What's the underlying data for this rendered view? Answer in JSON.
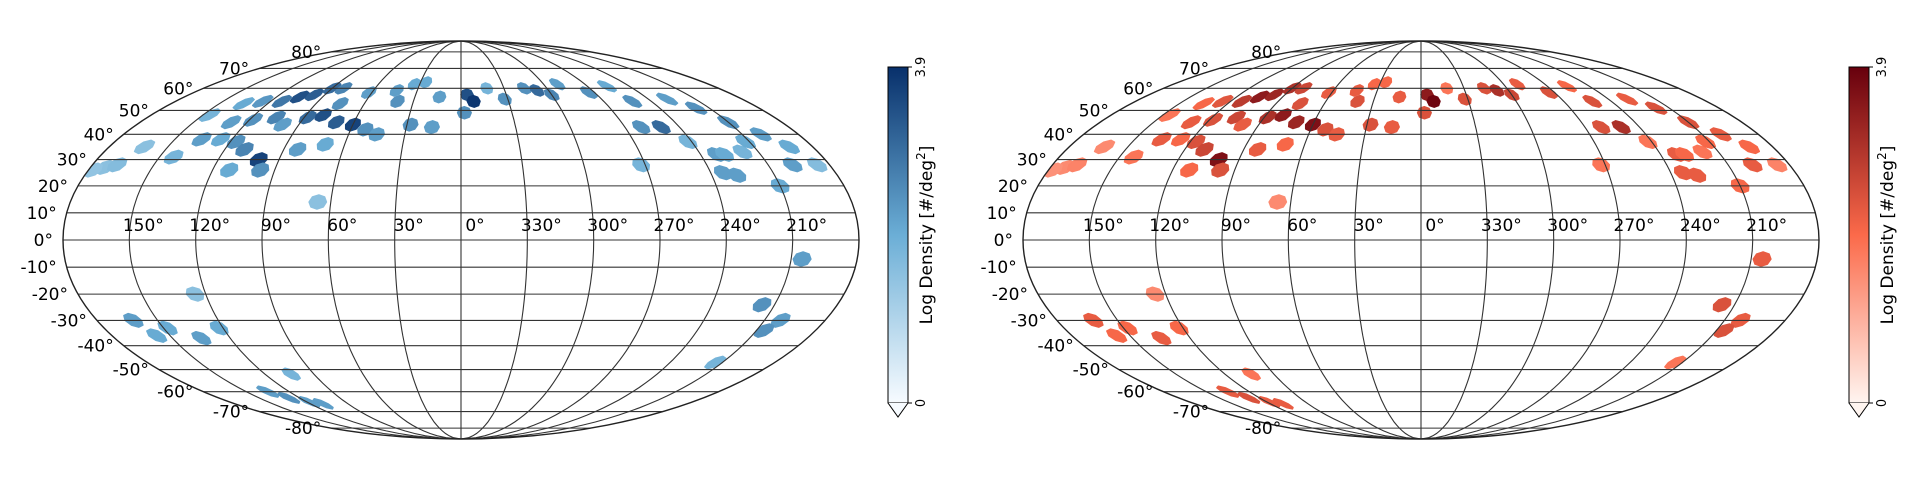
{
  "chart_data": [
    {
      "type": "heatmap",
      "projection": "mollweide",
      "colormap": "Blues",
      "colors": {
        "low": "#f7fbff",
        "mid": "#6baed6",
        "high": "#08306b"
      },
      "lon_ticks": [
        "150°",
        "120°",
        "90°",
        "60°",
        "30°",
        "0°",
        "330°",
        "300°",
        "270°",
        "240°",
        "210°"
      ],
      "lon_tick_values": [
        150,
        120,
        90,
        60,
        30,
        0,
        -30,
        -60,
        -90,
        -120,
        -150
      ],
      "lat_ticks": [
        "80°",
        "70°",
        "60°",
        "50°",
        "40°",
        "30°",
        "20°",
        "10°",
        "0°",
        "-10°",
        "-20°",
        "-30°",
        "-40°",
        "-50°",
        "-60°",
        "-70°",
        "-80°"
      ],
      "lat_tick_values": [
        80,
        70,
        60,
        50,
        40,
        30,
        20,
        10,
        0,
        -10,
        -20,
        -30,
        -40,
        -50,
        -60,
        -70,
        -80
      ],
      "colorbar": {
        "label": "Log Density [#/deg",
        "label_sup": "2",
        "label_end": "]",
        "min": 0,
        "max": 3.9,
        "min_label": "0",
        "max_label": "3.9",
        "extend": "min"
      },
      "patches": [
        {
          "lon": 173,
          "lat": 27,
          "v": 1.5
        },
        {
          "lon": 168,
          "lat": 28,
          "v": 1.6
        },
        {
          "lon": 178,
          "lat": 26,
          "v": 1.4
        },
        {
          "lon": 162,
          "lat": 35,
          "v": 1.5
        },
        {
          "lon": 146,
          "lat": 48,
          "v": 1.8
        },
        {
          "lon": 135,
          "lat": 53,
          "v": 2.0
        },
        {
          "lon": 125,
          "lat": 54,
          "v": 2.3
        },
        {
          "lon": 113,
          "lat": 54,
          "v": 2.8
        },
        {
          "lon": 105,
          "lat": 56,
          "v": 3.4
        },
        {
          "lon": 97,
          "lat": 57,
          "v": 3.2
        },
        {
          "lon": 90,
          "lat": 60,
          "v": 3.0
        },
        {
          "lon": 82,
          "lat": 60,
          "v": 2.6
        },
        {
          "lon": 75,
          "lat": 53,
          "v": 2.4
        },
        {
          "lon": 62,
          "lat": 58,
          "v": 2.2
        },
        {
          "lon": 44,
          "lat": 59,
          "v": 2.2
        },
        {
          "lon": 26,
          "lat": 63,
          "v": 2.0
        },
        {
          "lon": 34,
          "lat": 62,
          "v": 2.0
        },
        {
          "lon": 40,
          "lat": 54,
          "v": 2.4
        },
        {
          "lon": 14,
          "lat": 56,
          "v": 2.2
        },
        {
          "lon": 129,
          "lat": 45,
          "v": 2.2
        },
        {
          "lon": 118,
          "lat": 46,
          "v": 2.4
        },
        {
          "lon": 106,
          "lat": 47,
          "v": 2.6
        },
        {
          "lon": 99,
          "lat": 44,
          "v": 2.2
        },
        {
          "lon": 88,
          "lat": 47,
          "v": 3.0
        },
        {
          "lon": 80,
          "lat": 48,
          "v": 3.4
        },
        {
          "lon": 70,
          "lat": 45,
          "v": 3.2
        },
        {
          "lon": 60,
          "lat": 44,
          "v": 3.6
        },
        {
          "lon": 52,
          "lat": 42,
          "v": 2.4
        },
        {
          "lon": 45,
          "lat": 40,
          "v": 2.2
        },
        {
          "lon": 28,
          "lat": 44,
          "v": 2.4
        },
        {
          "lon": 16,
          "lat": 43,
          "v": 2.2
        },
        {
          "lon": 136,
          "lat": 38,
          "v": 2.2
        },
        {
          "lon": 126,
          "lat": 38,
          "v": 2.0
        },
        {
          "lon": 117,
          "lat": 37,
          "v": 2.4
        },
        {
          "lon": 110,
          "lat": 34,
          "v": 2.6
        },
        {
          "lon": 100,
          "lat": 30,
          "v": 3.6
        },
        {
          "lon": 97,
          "lat": 26,
          "v": 2.4
        },
        {
          "lon": 112,
          "lat": 26,
          "v": 2.0
        },
        {
          "lon": 143,
          "lat": 31,
          "v": 1.8
        },
        {
          "lon": 83,
          "lat": 34,
          "v": 2.2
        },
        {
          "lon": 70,
          "lat": 36,
          "v": 2.0
        },
        {
          "lon": 66,
          "lat": 14,
          "v": 1.5
        },
        {
          "lon": -4,
          "lat": 57,
          "v": 3.4
        },
        {
          "lon": -8,
          "lat": 54,
          "v": 3.8
        },
        {
          "lon": -18,
          "lat": 60,
          "v": 1.8
        },
        {
          "lon": -2,
          "lat": 49,
          "v": 2.4
        },
        {
          "lon": -28,
          "lat": 55,
          "v": 2.4
        },
        {
          "lon": -44,
          "lat": 60,
          "v": 2.4
        },
        {
          "lon": -52,
          "lat": 59,
          "v": 3.0
        },
        {
          "lon": -60,
          "lat": 57,
          "v": 2.6
        },
        {
          "lon": -70,
          "lat": 62,
          "v": 2.2
        },
        {
          "lon": -86,
          "lat": 58,
          "v": 2.4
        },
        {
          "lon": -104,
          "lat": 61,
          "v": 2.0
        },
        {
          "lon": -108,
          "lat": 54,
          "v": 2.4
        },
        {
          "lon": -132,
          "lat": 55,
          "v": 2.2
        },
        {
          "lon": -142,
          "lat": 51,
          "v": 2.4
        },
        {
          "lon": -150,
          "lat": 45,
          "v": 2.4
        },
        {
          "lon": -160,
          "lat": 40,
          "v": 2.2
        },
        {
          "lon": -168,
          "lat": 35,
          "v": 2.0
        },
        {
          "lon": -174,
          "lat": 28,
          "v": 1.6
        },
        {
          "lon": -110,
          "lat": 43,
          "v": 3.0
        },
        {
          "lon": -99,
          "lat": 43,
          "v": 2.4
        },
        {
          "lon": -118,
          "lat": 37,
          "v": 1.8
        },
        {
          "lon": -128,
          "lat": 32,
          "v": 2.2
        },
        {
          "lon": -132,
          "lat": 32,
          "v": 2.0
        },
        {
          "lon": -142,
          "lat": 33,
          "v": 1.8
        },
        {
          "lon": -148,
          "lat": 37,
          "v": 2.0
        },
        {
          "lon": -126,
          "lat": 25,
          "v": 2.2
        },
        {
          "lon": -132,
          "lat": 24,
          "v": 2.2
        },
        {
          "lon": -150,
          "lat": 20,
          "v": 2.0
        },
        {
          "lon": -88,
          "lat": 28,
          "v": 1.8
        },
        {
          "lon": -162,
          "lat": 28,
          "v": 2.2
        },
        {
          "lon": -155,
          "lat": -7,
          "v": 2.2
        },
        {
          "lon": -144,
          "lat": -24,
          "v": 2.4
        },
        {
          "lon": -158,
          "lat": -30,
          "v": 2.2
        },
        {
          "lon": -154,
          "lat": -34,
          "v": 2.4
        },
        {
          "lon": -146,
          "lat": -47,
          "v": 1.8
        },
        {
          "lon": 162,
          "lat": -30,
          "v": 2.2
        },
        {
          "lon": 157,
          "lat": -36,
          "v": 2.0
        },
        {
          "lon": 148,
          "lat": -33,
          "v": 2.0
        },
        {
          "lon": 135,
          "lat": -37,
          "v": 2.2
        },
        {
          "lon": 122,
          "lat": -33,
          "v": 2.0
        },
        {
          "lon": 125,
          "lat": -20,
          "v": 1.5
        },
        {
          "lon": 104,
          "lat": -52,
          "v": 1.8
        },
        {
          "lon": 135,
          "lat": -60,
          "v": 2.2
        },
        {
          "lon": 128,
          "lat": -63,
          "v": 2.4
        },
        {
          "lon": 118,
          "lat": -65,
          "v": 2.2
        },
        {
          "lon": 110,
          "lat": -66,
          "v": 2.2
        }
      ]
    },
    {
      "type": "heatmap",
      "projection": "mollweide",
      "colormap": "Reds",
      "colors": {
        "low": "#fff5f0",
        "mid": "#fb6a4a",
        "high": "#67000d"
      },
      "lon_ticks": [
        "150°",
        "120°",
        "90°",
        "60°",
        "30°",
        "0°",
        "330°",
        "300°",
        "270°",
        "240°",
        "210°"
      ],
      "lon_tick_values": [
        150,
        120,
        90,
        60,
        30,
        0,
        -30,
        -60,
        -90,
        -120,
        -150
      ],
      "lat_ticks": [
        "80°",
        "70°",
        "60°",
        "50°",
        "40°",
        "30°",
        "20°",
        "10°",
        "0°",
        "-10°",
        "-20°",
        "-30°",
        "-40°",
        "-50°",
        "-60°",
        "-70°",
        "-80°"
      ],
      "lat_tick_values": [
        80,
        70,
        60,
        50,
        40,
        30,
        20,
        10,
        0,
        -10,
        -20,
        -30,
        -40,
        -50,
        -60,
        -70,
        -80
      ],
      "colorbar": {
        "label": "Log Density [#/deg",
        "label_sup": "2",
        "label_end": "]",
        "min": 0,
        "max": 3.9,
        "min_label": "0",
        "max_label": "3.9",
        "extend": "min"
      },
      "patches": [
        {
          "lon": 173,
          "lat": 27,
          "v": 1.5
        },
        {
          "lon": 168,
          "lat": 28,
          "v": 1.6
        },
        {
          "lon": 178,
          "lat": 26,
          "v": 1.4
        },
        {
          "lon": 162,
          "lat": 35,
          "v": 1.5
        },
        {
          "lon": 146,
          "lat": 48,
          "v": 1.8
        },
        {
          "lon": 135,
          "lat": 53,
          "v": 2.0
        },
        {
          "lon": 125,
          "lat": 54,
          "v": 2.3
        },
        {
          "lon": 113,
          "lat": 54,
          "v": 2.8
        },
        {
          "lon": 105,
          "lat": 56,
          "v": 3.4
        },
        {
          "lon": 97,
          "lat": 57,
          "v": 3.2
        },
        {
          "lon": 90,
          "lat": 60,
          "v": 3.0
        },
        {
          "lon": 82,
          "lat": 60,
          "v": 2.6
        },
        {
          "lon": 75,
          "lat": 53,
          "v": 2.4
        },
        {
          "lon": 62,
          "lat": 58,
          "v": 2.2
        },
        {
          "lon": 44,
          "lat": 59,
          "v": 2.2
        },
        {
          "lon": 26,
          "lat": 63,
          "v": 2.0
        },
        {
          "lon": 34,
          "lat": 62,
          "v": 2.0
        },
        {
          "lon": 40,
          "lat": 54,
          "v": 2.4
        },
        {
          "lon": 14,
          "lat": 56,
          "v": 2.2
        },
        {
          "lon": 129,
          "lat": 45,
          "v": 2.2
        },
        {
          "lon": 118,
          "lat": 46,
          "v": 2.4
        },
        {
          "lon": 106,
          "lat": 47,
          "v": 2.6
        },
        {
          "lon": 99,
          "lat": 44,
          "v": 2.2
        },
        {
          "lon": 88,
          "lat": 47,
          "v": 3.0
        },
        {
          "lon": 80,
          "lat": 48,
          "v": 3.4
        },
        {
          "lon": 70,
          "lat": 45,
          "v": 3.2
        },
        {
          "lon": 60,
          "lat": 44,
          "v": 3.6
        },
        {
          "lon": 52,
          "lat": 42,
          "v": 2.4
        },
        {
          "lon": 45,
          "lat": 40,
          "v": 2.2
        },
        {
          "lon": 28,
          "lat": 44,
          "v": 2.4
        },
        {
          "lon": 16,
          "lat": 43,
          "v": 2.2
        },
        {
          "lon": 136,
          "lat": 38,
          "v": 2.2
        },
        {
          "lon": 126,
          "lat": 38,
          "v": 2.0
        },
        {
          "lon": 117,
          "lat": 37,
          "v": 2.4
        },
        {
          "lon": 110,
          "lat": 34,
          "v": 2.6
        },
        {
          "lon": 100,
          "lat": 30,
          "v": 3.6
        },
        {
          "lon": 97,
          "lat": 26,
          "v": 2.4
        },
        {
          "lon": 112,
          "lat": 26,
          "v": 2.0
        },
        {
          "lon": 143,
          "lat": 31,
          "v": 1.8
        },
        {
          "lon": 83,
          "lat": 34,
          "v": 2.2
        },
        {
          "lon": 70,
          "lat": 36,
          "v": 2.0
        },
        {
          "lon": 66,
          "lat": 14,
          "v": 1.5
        },
        {
          "lon": -4,
          "lat": 57,
          "v": 3.4
        },
        {
          "lon": -8,
          "lat": 54,
          "v": 3.8
        },
        {
          "lon": -18,
          "lat": 60,
          "v": 1.8
        },
        {
          "lon": -2,
          "lat": 49,
          "v": 2.4
        },
        {
          "lon": -28,
          "lat": 55,
          "v": 2.4
        },
        {
          "lon": -44,
          "lat": 60,
          "v": 2.4
        },
        {
          "lon": -52,
          "lat": 59,
          "v": 3.0
        },
        {
          "lon": -60,
          "lat": 57,
          "v": 2.6
        },
        {
          "lon": -70,
          "lat": 62,
          "v": 2.2
        },
        {
          "lon": -86,
          "lat": 58,
          "v": 2.4
        },
        {
          "lon": -104,
          "lat": 61,
          "v": 2.0
        },
        {
          "lon": -108,
          "lat": 54,
          "v": 2.4
        },
        {
          "lon": -132,
          "lat": 55,
          "v": 2.2
        },
        {
          "lon": -142,
          "lat": 51,
          "v": 2.4
        },
        {
          "lon": -150,
          "lat": 45,
          "v": 2.4
        },
        {
          "lon": -160,
          "lat": 40,
          "v": 2.2
        },
        {
          "lon": -168,
          "lat": 35,
          "v": 2.0
        },
        {
          "lon": -174,
          "lat": 28,
          "v": 1.6
        },
        {
          "lon": -110,
          "lat": 43,
          "v": 3.0
        },
        {
          "lon": -99,
          "lat": 43,
          "v": 2.4
        },
        {
          "lon": -118,
          "lat": 37,
          "v": 1.8
        },
        {
          "lon": -128,
          "lat": 32,
          "v": 2.2
        },
        {
          "lon": -132,
          "lat": 32,
          "v": 2.0
        },
        {
          "lon": -142,
          "lat": 33,
          "v": 1.8
        },
        {
          "lon": -148,
          "lat": 37,
          "v": 2.0
        },
        {
          "lon": -126,
          "lat": 25,
          "v": 2.2
        },
        {
          "lon": -132,
          "lat": 24,
          "v": 2.2
        },
        {
          "lon": -150,
          "lat": 20,
          "v": 2.0
        },
        {
          "lon": -88,
          "lat": 28,
          "v": 1.8
        },
        {
          "lon": -162,
          "lat": 28,
          "v": 2.2
        },
        {
          "lon": -155,
          "lat": -7,
          "v": 2.2
        },
        {
          "lon": -144,
          "lat": -24,
          "v": 2.4
        },
        {
          "lon": -158,
          "lat": -30,
          "v": 2.2
        },
        {
          "lon": -154,
          "lat": -34,
          "v": 2.4
        },
        {
          "lon": -146,
          "lat": -47,
          "v": 1.8
        },
        {
          "lon": 162,
          "lat": -30,
          "v": 2.2
        },
        {
          "lon": 157,
          "lat": -36,
          "v": 2.0
        },
        {
          "lon": 148,
          "lat": -33,
          "v": 2.0
        },
        {
          "lon": 135,
          "lat": -37,
          "v": 2.2
        },
        {
          "lon": 122,
          "lat": -33,
          "v": 2.0
        },
        {
          "lon": 125,
          "lat": -20,
          "v": 1.5
        },
        {
          "lon": 104,
          "lat": -52,
          "v": 1.8
        },
        {
          "lon": 135,
          "lat": -60,
          "v": 2.2
        },
        {
          "lon": 128,
          "lat": -63,
          "v": 2.4
        },
        {
          "lon": 118,
          "lat": -65,
          "v": 2.2
        },
        {
          "lon": 110,
          "lat": -66,
          "v": 2.2
        }
      ]
    }
  ]
}
